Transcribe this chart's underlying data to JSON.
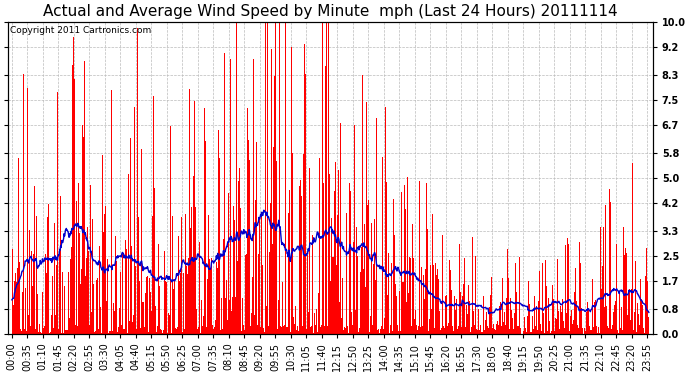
{
  "title": "Actual and Average Wind Speed by Minute  mph (Last 24 Hours) 20111114",
  "copyright_text": "Copyright 2011 Cartronics.com",
  "yticks": [
    0.0,
    0.8,
    1.7,
    2.5,
    3.3,
    4.2,
    5.0,
    5.8,
    6.7,
    7.5,
    8.3,
    9.2,
    10.0
  ],
  "ylim": [
    0.0,
    10.0
  ],
  "bar_color": "#FF0000",
  "line_color": "#0000CC",
  "background_color": "#FFFFFF",
  "plot_bg_color": "#FFFFFF",
  "grid_color": "#BBBBBB",
  "title_fontsize": 11,
  "copyright_fontsize": 6.5,
  "tick_fontsize": 7,
  "label_step_minutes": 35,
  "n_minutes": 1440
}
